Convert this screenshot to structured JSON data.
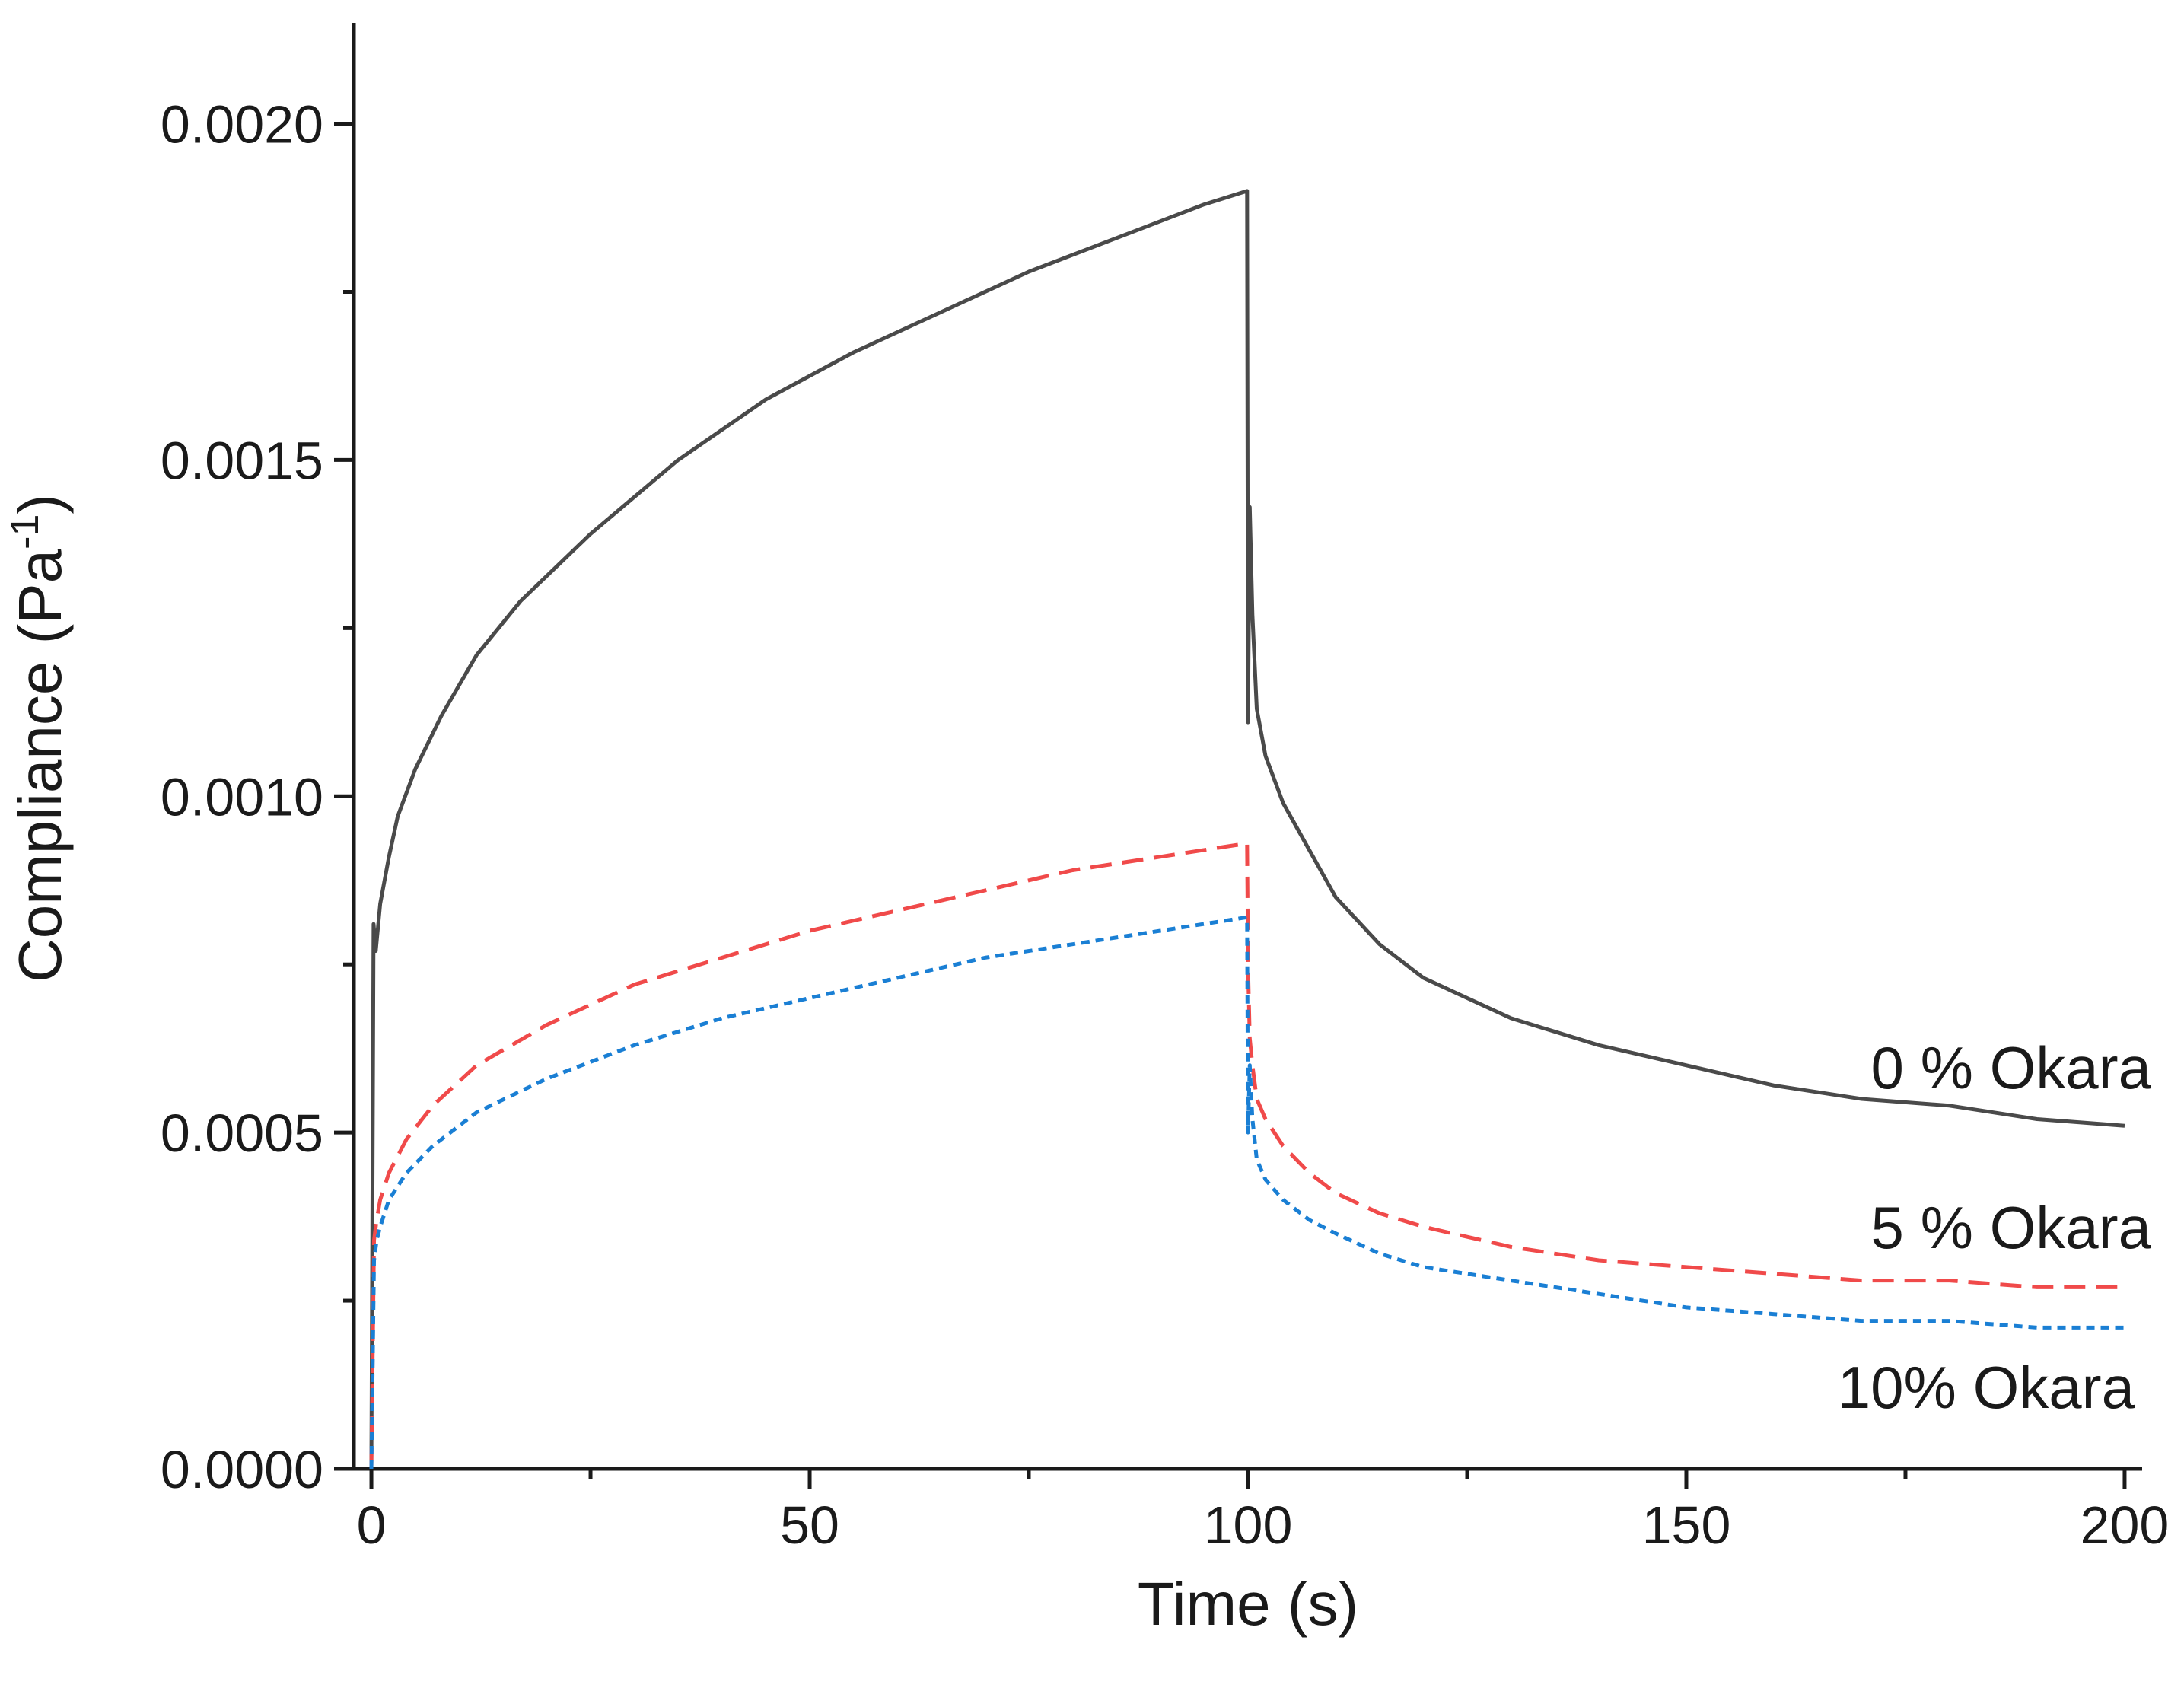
{
  "chart_data": {
    "type": "line",
    "title": "",
    "xlabel": "Time (s)",
    "ylabel": "Compliance (Pa",
    "ylabel_superscript": "-1",
    "ylabel_close": ")",
    "xlim": [
      -2,
      202
    ],
    "ylim": [
      0,
      0.00215
    ],
    "x_ticks": [
      0,
      50,
      100,
      150,
      200
    ],
    "x_tick_labels": [
      "0",
      "50",
      "100",
      "150",
      "200"
    ],
    "y_ticks": [
      0,
      0.0005,
      0.001,
      0.0015,
      0.002
    ],
    "y_tick_labels": [
      "0.0000",
      "0.0005",
      "0.0010",
      "0.0015",
      "0.0020"
    ],
    "grid": false,
    "series": [
      {
        "name": "0 % Okara",
        "color": "#4a4a4a",
        "dash": "solid",
        "x": [
          0,
          0.25,
          0.5,
          1,
          2,
          3,
          5,
          8,
          12,
          17,
          25,
          35,
          45,
          55,
          65,
          75,
          85,
          95,
          99.9,
          100,
          100.2,
          100.5,
          101,
          102,
          104,
          107,
          110,
          115,
          120,
          130,
          140,
          150,
          160,
          170,
          180,
          190,
          200
        ],
        "values": [
          0,
          0.00081,
          0.00077,
          0.00084,
          0.00091,
          0.00097,
          0.00104,
          0.00112,
          0.00121,
          0.00129,
          0.00139,
          0.0015,
          0.00159,
          0.00166,
          0.00172,
          0.00178,
          0.00183,
          0.00188,
          0.0019,
          0.00111,
          0.00143,
          0.00127,
          0.00113,
          0.00106,
          0.00099,
          0.00092,
          0.00085,
          0.00078,
          0.00073,
          0.00067,
          0.00063,
          0.0006,
          0.00057,
          0.00055,
          0.00054,
          0.00052,
          0.00051
        ]
      },
      {
        "name": "5 % Okara",
        "color": "#f04a4a",
        "dash": "long-dash",
        "x": [
          0,
          0.3,
          0.6,
          1,
          2,
          4,
          7,
          12,
          20,
          30,
          40,
          50,
          60,
          70,
          80,
          90,
          99.9,
          100,
          100.2,
          100.5,
          101,
          102,
          104,
          107,
          110,
          115,
          120,
          130,
          140,
          150,
          160,
          170,
          180,
          190,
          200
        ],
        "values": [
          0,
          0.00034,
          0.00037,
          0.0004,
          0.00044,
          0.00049,
          0.00054,
          0.0006,
          0.00066,
          0.00072,
          0.00076,
          0.0008,
          0.00083,
          0.00086,
          0.00089,
          0.00091,
          0.00093,
          0.00075,
          0.00064,
          0.0006,
          0.00055,
          0.00052,
          0.00048,
          0.00044,
          0.00041,
          0.00038,
          0.00036,
          0.00033,
          0.00031,
          0.0003,
          0.00029,
          0.00028,
          0.00028,
          0.00027,
          0.00027
        ]
      },
      {
        "name": "10% Okara",
        "color": "#1a7fd4",
        "dash": "short-dash",
        "x": [
          0,
          0.3,
          0.6,
          1,
          2,
          4,
          7,
          12,
          20,
          30,
          40,
          50,
          60,
          70,
          80,
          90,
          99.9,
          100,
          100.2,
          100.5,
          101,
          102,
          104,
          107,
          110,
          115,
          120,
          130,
          140,
          150,
          160,
          170,
          180,
          190,
          200
        ],
        "values": [
          0,
          0.00031,
          0.00034,
          0.00036,
          0.0004,
          0.00044,
          0.00048,
          0.00053,
          0.00058,
          0.00063,
          0.00067,
          0.0007,
          0.00073,
          0.00076,
          0.00078,
          0.0008,
          0.00082,
          0.0005,
          0.0006,
          0.00052,
          0.00046,
          0.00043,
          0.0004,
          0.00037,
          0.00035,
          0.00032,
          0.0003,
          0.00028,
          0.00026,
          0.00024,
          0.00023,
          0.00022,
          0.00022,
          0.00021,
          0.00021
        ]
      }
    ],
    "annotations": [
      "0 % Okara",
      "5 % Okara",
      "10% Okara"
    ]
  }
}
